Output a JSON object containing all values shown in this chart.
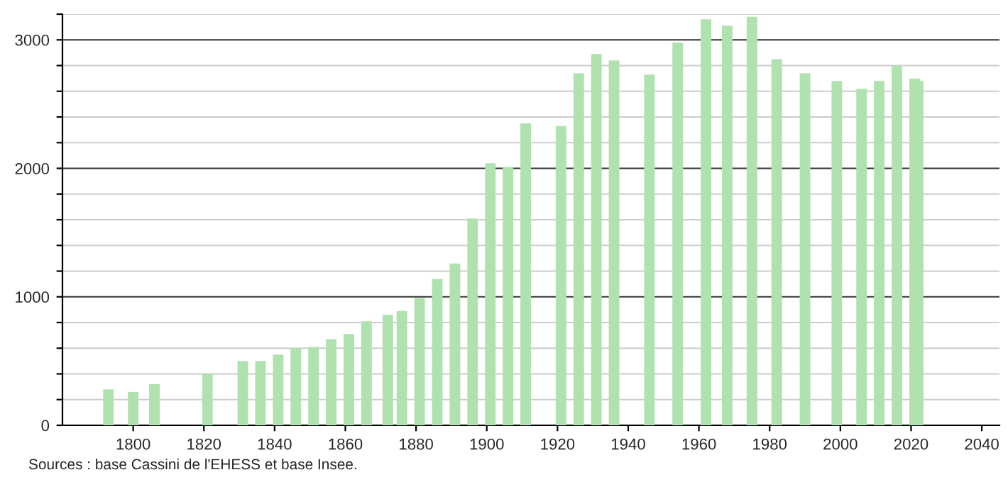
{
  "chart_data": {
    "type": "bar",
    "color": "#b0e2b0",
    "x": [
      1793,
      1800,
      1806,
      1821,
      1831,
      1836,
      1841,
      1846,
      1851,
      1856,
      1861,
      1866,
      1872,
      1876,
      1881,
      1886,
      1891,
      1896,
      1901,
      1906,
      1911,
      1921,
      1926,
      1931,
      1936,
      1946,
      1954,
      1962,
      1968,
      1975,
      1982,
      1990,
      1999,
      2006,
      2011,
      2016,
      2021,
      2022
    ],
    "values": [
      280,
      260,
      320,
      400,
      500,
      500,
      550,
      600,
      610,
      670,
      710,
      810,
      860,
      890,
      990,
      1140,
      1260,
      1610,
      2040,
      2010,
      2350,
      2330,
      2740,
      2890,
      2840,
      2730,
      2980,
      3160,
      3110,
      3180,
      2850,
      2740,
      2680,
      2620,
      2680,
      2800,
      2700,
      2680
    ],
    "xlim": [
      1780,
      2045
    ],
    "xticks": [
      1800,
      1820,
      1840,
      1860,
      1880,
      1900,
      1920,
      1940,
      1960,
      1980,
      2000,
      2020,
      2040
    ],
    "ylim": [
      0,
      3200
    ],
    "yticks": [
      0,
      {
        "value": 200,
        "label": null
      },
      {
        "value": 400,
        "label": null
      },
      {
        "value": 600,
        "label": null
      },
      {
        "value": 800,
        "label": null
      },
      1000,
      {
        "value": 1200,
        "label": null
      },
      {
        "value": 1400,
        "label": null
      },
      {
        "value": 1600,
        "label": null
      },
      {
        "value": 1800,
        "label": null
      },
      2000,
      {
        "value": 2200,
        "label": null
      },
      {
        "value": 2400,
        "label": null
      },
      {
        "value": 2600,
        "label": null
      },
      {
        "value": 2800,
        "label": null
      },
      3000,
      {
        "value": 3200,
        "label": null
      }
    ],
    "grid": "y",
    "annotations": [
      "Sources : base Cassini de l'EHESS et base Insee."
    ]
  }
}
